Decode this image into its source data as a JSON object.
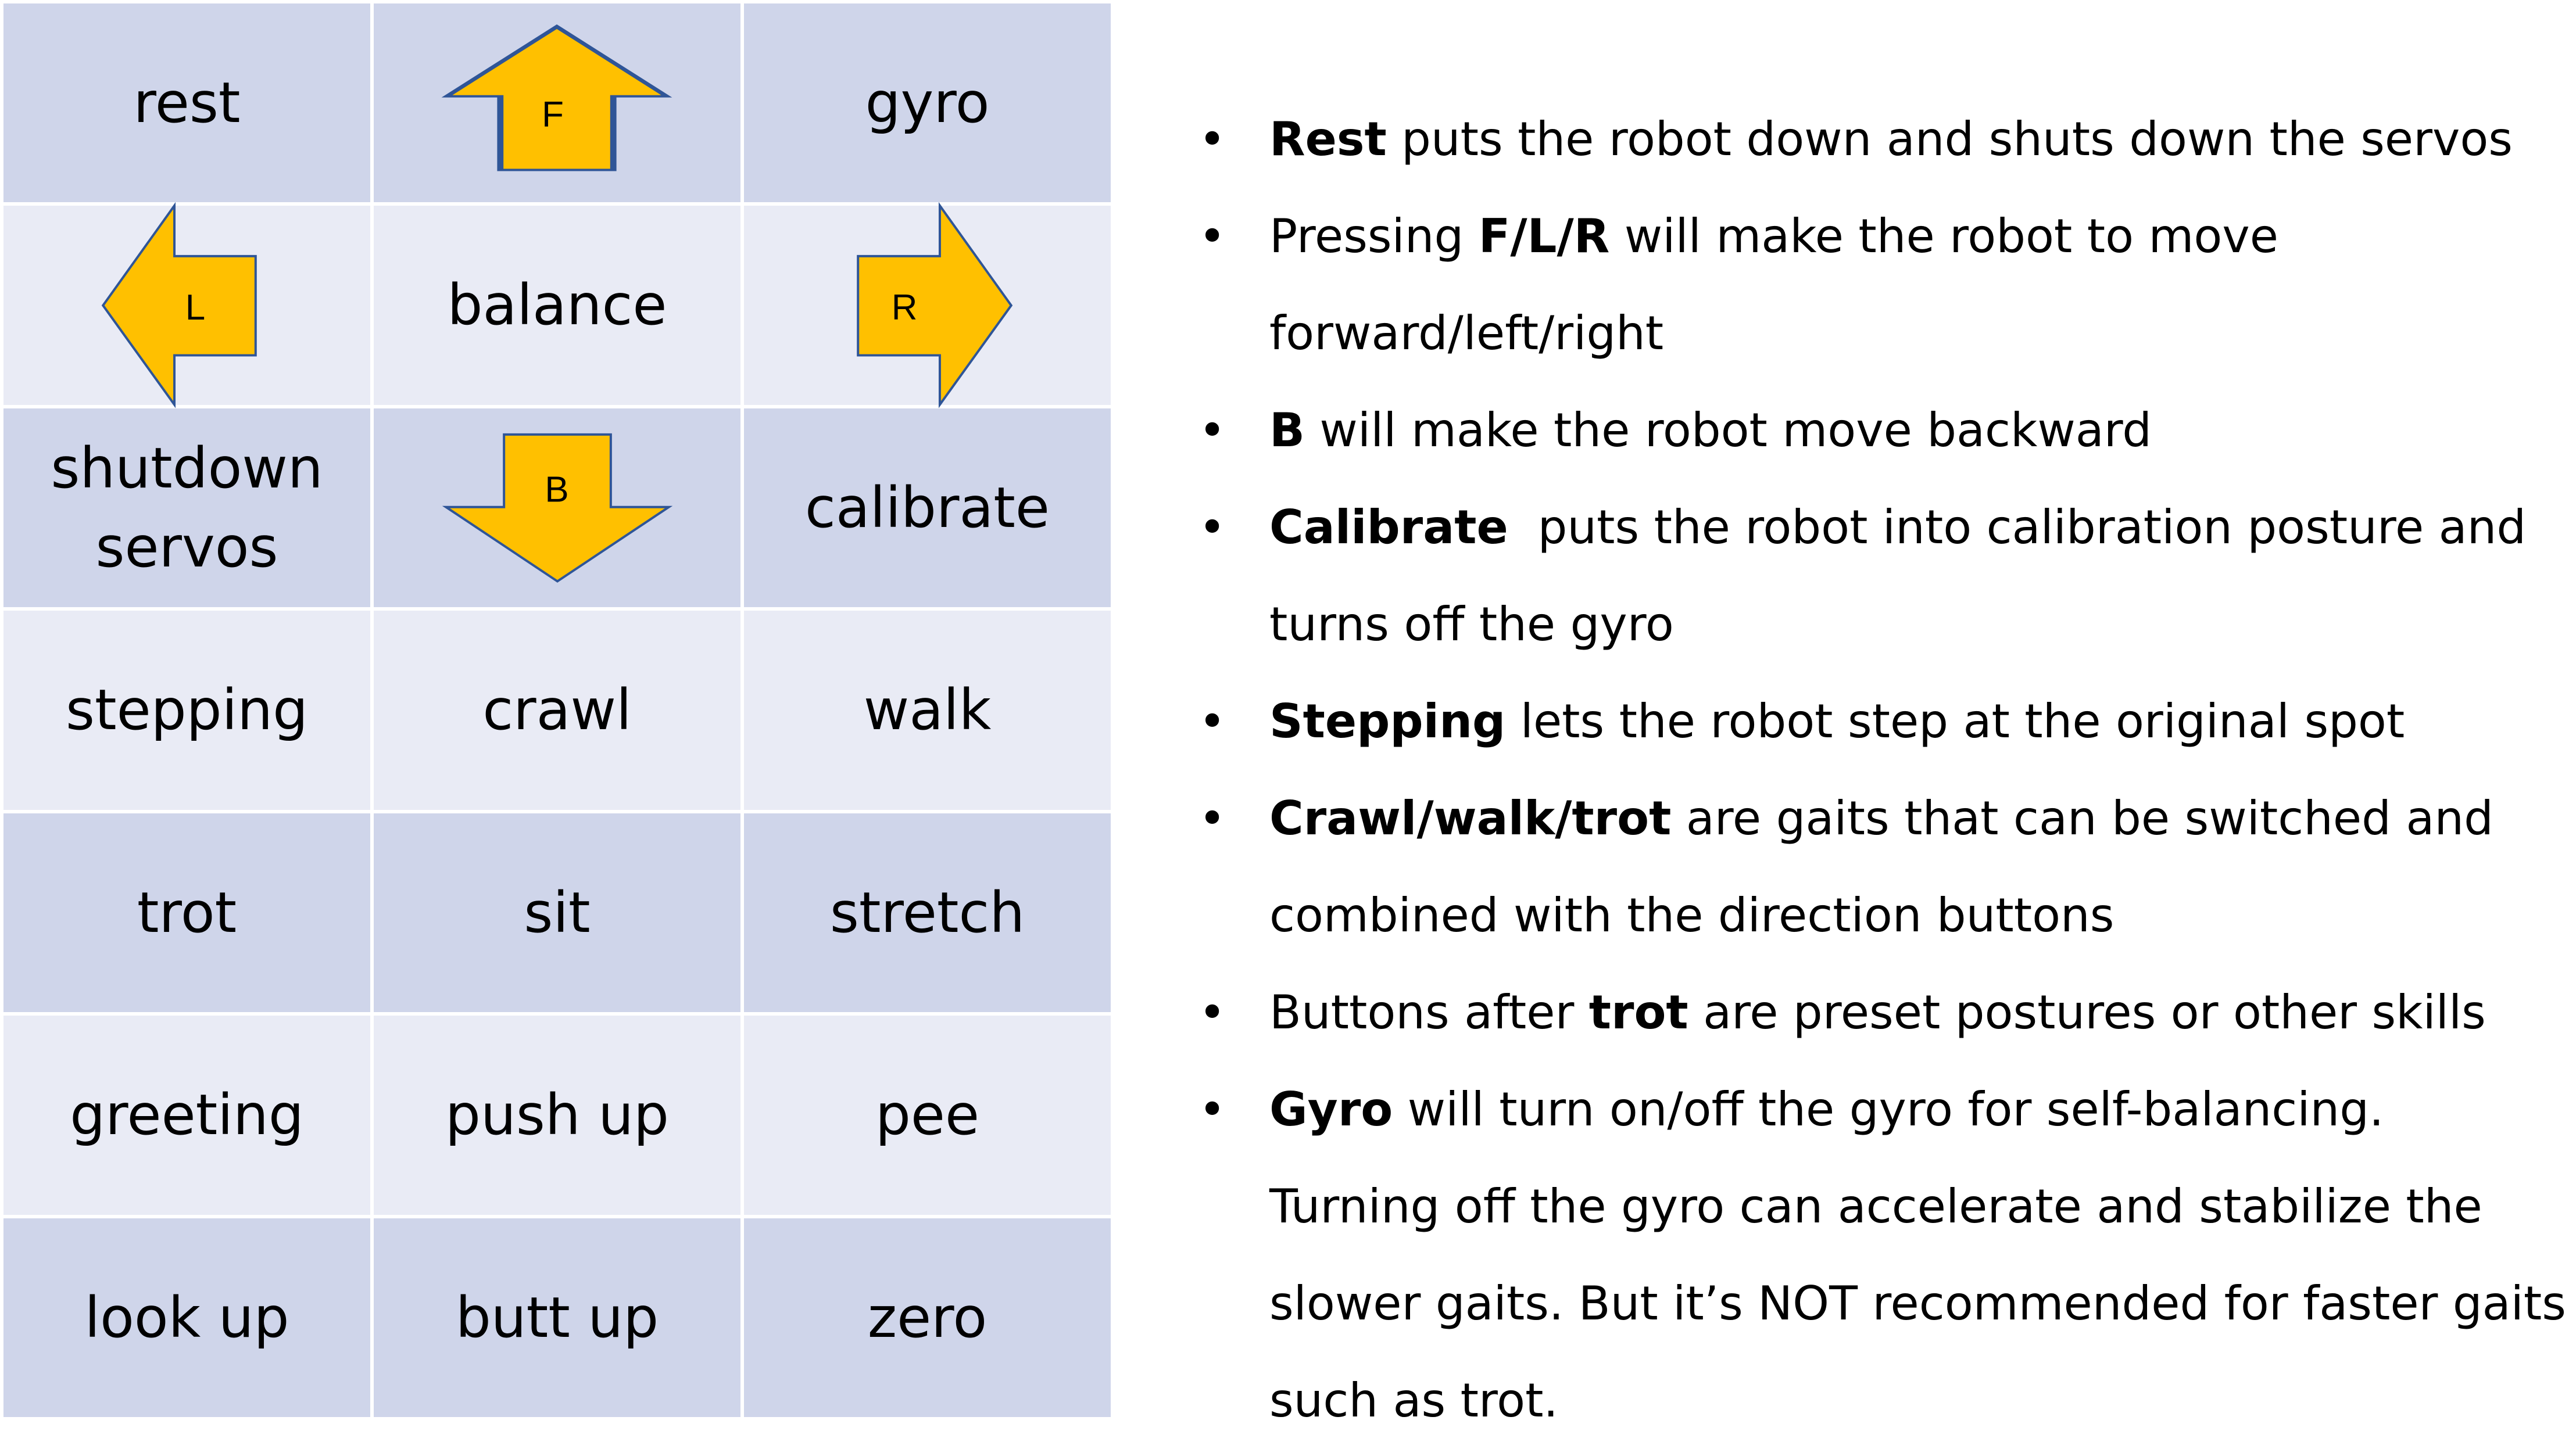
{
  "grid": {
    "rest": "rest",
    "forward_letter": "F",
    "gyro": "gyro",
    "left_letter": "L",
    "balance": "balance",
    "right_letter": "R",
    "shutdown_servos": "shutdown\nservos",
    "back_letter": "B",
    "calibrate": "calibrate",
    "stepping": "stepping",
    "crawl": "crawl",
    "walk": "walk",
    "trot": "trot",
    "sit": "sit",
    "stretch": "stretch",
    "greeting": "greeting",
    "push_up": "push up",
    "pee": "pee",
    "look_up": "look up",
    "butt_up": "butt up",
    "zero": "zero"
  },
  "colors": {
    "cell_dark": "#cfd5ea",
    "cell_light": "#e9ebf5",
    "arrow_fill": "#ffc000",
    "arrow_stroke": "#2f5597"
  },
  "icons": {
    "forward": "arrow-up-icon",
    "left": "arrow-left-icon",
    "right": "arrow-right-icon",
    "back": "arrow-down-icon"
  },
  "notes": [
    {
      "bold": "Rest",
      "text": " puts the robot down and shuts down the servos"
    },
    {
      "pre": "Pressing ",
      "bold": "F/L/R",
      "text": " will make the robot to move forward/left/right"
    },
    {
      "bold": "B",
      "text": " will make the robot move backward"
    },
    {
      "bold": "Calibrate",
      "text": "  puts the robot into calibration posture and turns off the gyro"
    },
    {
      "bold": "Stepping",
      "text": " lets the robot step at the original spot"
    },
    {
      "bold": "Crawl/walk/trot",
      "text": " are gaits that can be switched and combined with the direction buttons"
    },
    {
      "pre": "Buttons after ",
      "bold": "trot",
      "text": " are preset postures or other skills"
    },
    {
      "bold": "Gyro",
      "text": " will turn on/off the gyro for self-balancing. Turning off the gyro can accelerate and stabilize the slower gaits. But it’s NOT recommended for faster gaits such as trot."
    }
  ],
  "bullet_glyph": "•"
}
